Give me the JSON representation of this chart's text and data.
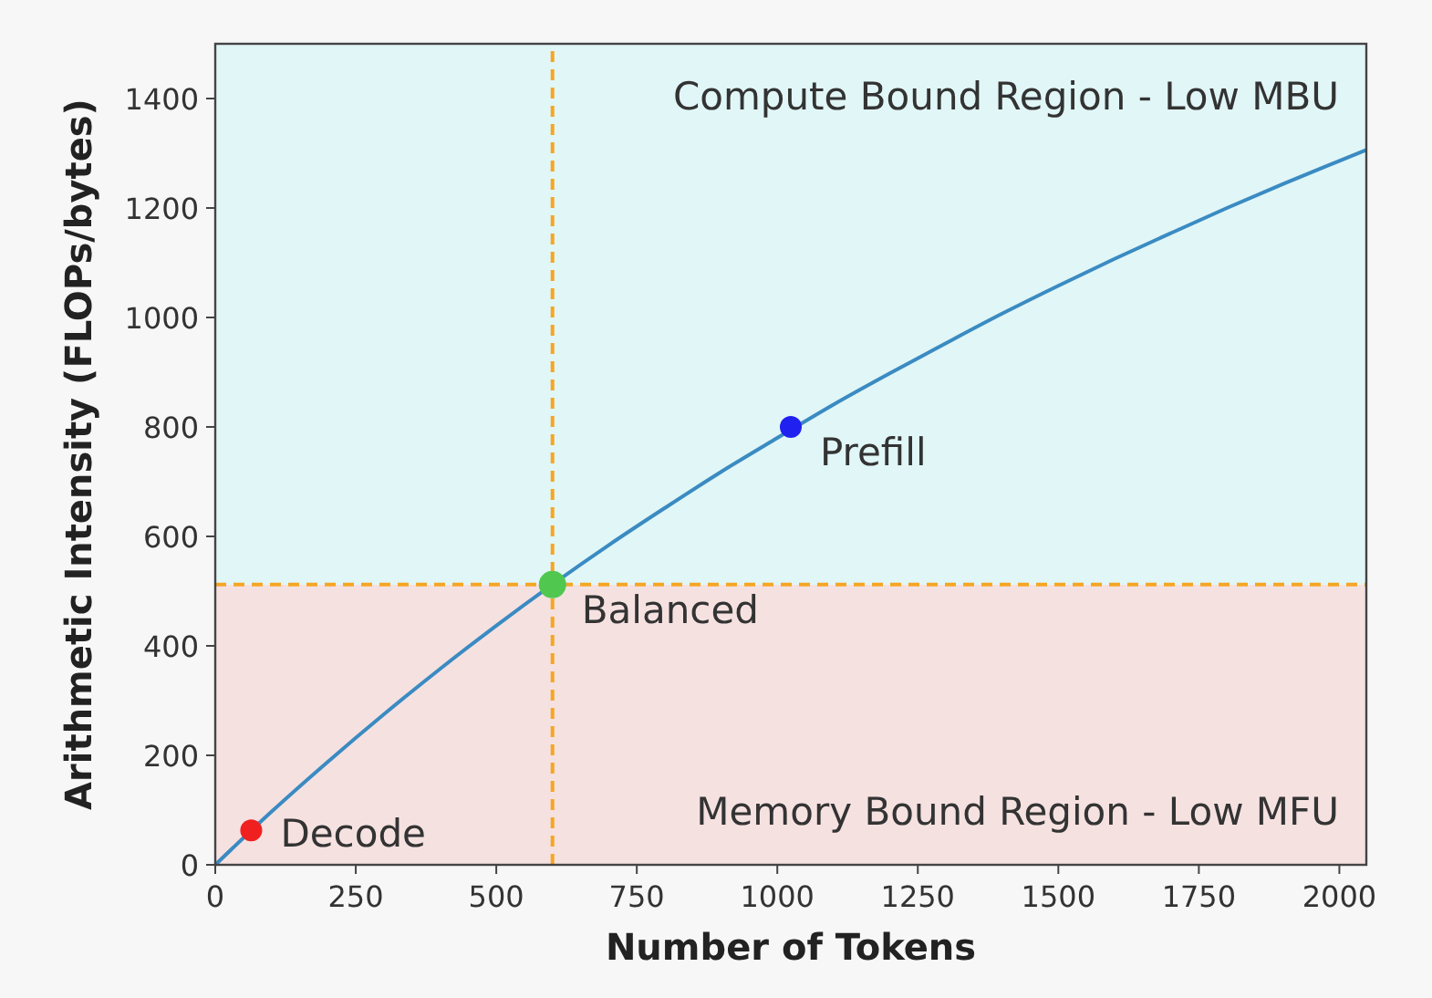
{
  "chart_data": {
    "type": "line",
    "xlabel": "Number of Tokens",
    "ylabel": "Arithmetic Intensity (FLOPs/bytes)",
    "xlim": [
      0,
      2048
    ],
    "ylim": [
      0,
      1500
    ],
    "xticks": [
      0,
      250,
      500,
      750,
      1000,
      1250,
      1500,
      1750,
      2000
    ],
    "yticks": [
      0,
      200,
      400,
      600,
      800,
      1000,
      1200,
      1400
    ],
    "grid": false,
    "series": [
      {
        "color": "#3a8bc2",
        "x": [
          0,
          100,
          200,
          300,
          400,
          500,
          700,
          800,
          900,
          1000,
          1100,
          1200,
          1300,
          1400,
          1500,
          1600,
          1700,
          1800,
          1900,
          2000,
          2048
        ],
        "values": [
          0,
          97,
          188,
          275,
          358,
          437,
          584,
          652,
          718,
          780,
          841,
          898,
          953,
          1007,
          1058,
          1107,
          1154,
          1200,
          1244,
          1286,
          1306
        ]
      },
      {
        "type": "scatter",
        "x": [
          64,
          600,
          1024
        ],
        "values": [
          63,
          512,
          800
        ],
        "colors": [
          "#f02020",
          "#50c850",
          "#2020f0"
        ]
      }
    ],
    "ref_lines": [
      {
        "axis": "x",
        "value": 600,
        "color": "#f5a623",
        "line_style": "dashed"
      },
      {
        "axis": "y",
        "value": 512,
        "color": "#f5a623",
        "line_style": "dashed"
      }
    ],
    "bands": [
      {
        "axis": "y",
        "from": 0,
        "to": 512,
        "label": "Memory Bound Region - Low MFU",
        "color": "#f6e1e1"
      },
      {
        "axis": "y",
        "from": 512,
        "to": 1500,
        "label": "Compute Bound Region - Low MBU",
        "color": "#e1f6f7"
      }
    ],
    "annotations": [
      {
        "text": "Decode",
        "x": 64,
        "y": 63
      },
      {
        "text": "Balanced",
        "x": 600,
        "y": 512
      },
      {
        "text": "Prefill",
        "x": 1024,
        "y": 800
      }
    ]
  }
}
